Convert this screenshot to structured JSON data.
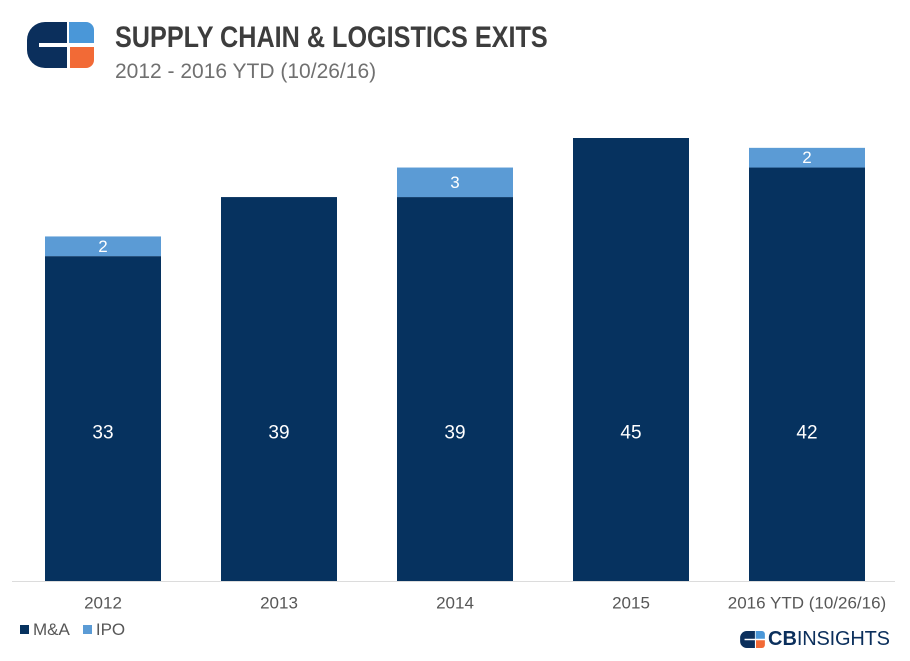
{
  "chart_data": {
    "type": "bar",
    "stacked": true,
    "title": "SUPPLY CHAIN & LOGISTICS EXITS",
    "subtitle": "2012 - 2016 YTD (10/26/16)",
    "categories": [
      "2012",
      "2013",
      "2014",
      "2015",
      "2016 YTD (10/26/16)"
    ],
    "series": [
      {
        "name": "M&A",
        "values": [
          33,
          39,
          39,
          45,
          42
        ],
        "color": "#06325f"
      },
      {
        "name": "IPO",
        "values": [
          2,
          0,
          3,
          0,
          2
        ],
        "color": "#5b9bd5"
      }
    ],
    "ylim": [
      0,
      45
    ],
    "grid": false,
    "data_labels": true,
    "legend_position": "bottom-left"
  },
  "branding": {
    "icon": "cb-insights-logo-icon",
    "wordmark_bold": "CB",
    "wordmark_regular": "INSIGHTS",
    "colors": {
      "navy": "#0b2f5c",
      "blue": "#4a97d8",
      "orange": "#f26a36",
      "gap": "#ffffff"
    }
  }
}
